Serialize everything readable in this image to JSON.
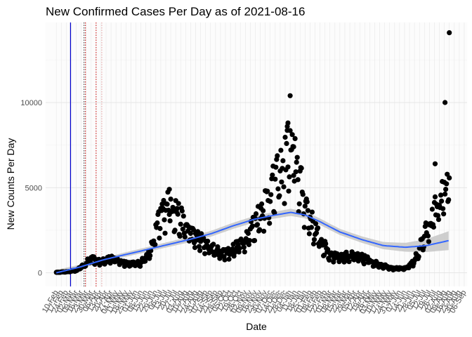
{
  "chart_data": {
    "type": "scatter",
    "title": "New Confirmed Cases Per Day as of 2021-08-16",
    "xlabel": "Date",
    "ylabel": "New Counts Per Day",
    "x_range": [
      "2020-01-26",
      "2021-09-10"
    ],
    "ylim": [
      -800,
      14700
    ],
    "y_ticks": [
      0,
      5000,
      10000
    ],
    "grid": true,
    "x_tick_labels": [
      "10-Feb",
      "17-Feb",
      "24-Feb",
      "02-Mar",
      "09-Mar",
      "16-Mar",
      "23-Mar",
      "30-Mar",
      "06-Apr",
      "13-Apr",
      "20-Apr",
      "27-Apr",
      "04-May",
      "11-May",
      "18-May",
      "25-May",
      "01-Jun",
      "08-Jun",
      "15-Jun",
      "22-Jun",
      "29-Jun",
      "06-Jul",
      "13-Jul",
      "20-Jul",
      "27-Jul",
      "03-Aug",
      "10-Aug",
      "17-Aug",
      "24-Aug",
      "31-Aug",
      "07-Sep",
      "14-Sep",
      "21-Sep",
      "28-Sep",
      "05-Oct",
      "12-Oct",
      "19-Oct",
      "26-Oct",
      "02-Nov",
      "09-Nov",
      "16-Nov",
      "23-Nov",
      "30-Nov",
      "07-Dec",
      "14-Dec",
      "21-Dec",
      "28-Dec",
      "04-Jan",
      "11-Jan",
      "18-Jan",
      "25-Jan",
      "01-Feb",
      "08-Feb",
      "15-Feb",
      "22-Feb",
      "01-Mar",
      "08-Mar",
      "15-Mar",
      "22-Mar",
      "29-Mar",
      "05-Apr",
      "12-Apr",
      "19-Apr",
      "26-Apr",
      "03-May",
      "10-May",
      "17-May",
      "24-May",
      "31-May",
      "07-Jun",
      "14-Jun",
      "21-Jun",
      "28-Jun",
      "05-Jul",
      "12-Jul",
      "19-Jul",
      "26-Jul",
      "02-Aug",
      "09-Aug",
      "16-Aug",
      "23-Aug",
      "30-Aug",
      "06-Sep"
    ],
    "series_points": {
      "name": "",
      "color": "#000000",
      "anchors": [
        [
          "2020-02-10",
          30
        ],
        [
          "2020-02-24",
          60
        ],
        [
          "2020-03-10",
          150
        ],
        [
          "2020-03-20",
          450
        ],
        [
          "2020-03-31",
          900
        ],
        [
          "2020-04-10",
          650
        ],
        [
          "2020-04-20",
          850
        ],
        [
          "2020-05-01",
          800
        ],
        [
          "2020-05-20",
          550
        ],
        [
          "2020-06-05",
          550
        ],
        [
          "2020-06-20",
          1100
        ],
        [
          "2020-06-28",
          2200
        ],
        [
          "2020-07-05",
          3300
        ],
        [
          "2020-07-15",
          4200
        ],
        [
          "2020-07-25",
          3900
        ],
        [
          "2020-08-05",
          3000
        ],
        [
          "2020-08-20",
          2200
        ],
        [
          "2020-09-05",
          1800
        ],
        [
          "2020-09-20",
          1300
        ],
        [
          "2020-10-05",
          1200
        ],
        [
          "2020-10-20",
          1500
        ],
        [
          "2020-11-05",
          2200
        ],
        [
          "2020-11-20",
          3300
        ],
        [
          "2020-12-05",
          4600
        ],
        [
          "2020-12-20",
          5800
        ],
        [
          "2021-01-03",
          7200
        ],
        [
          "2021-01-10",
          6800
        ],
        [
          "2021-01-20",
          5000
        ],
        [
          "2021-02-01",
          3200
        ],
        [
          "2021-02-15",
          1900
        ],
        [
          "2021-03-01",
          1100
        ],
        [
          "2021-03-15",
          1000
        ],
        [
          "2021-04-01",
          1000
        ],
        [
          "2021-04-20",
          850
        ],
        [
          "2021-05-05",
          550
        ],
        [
          "2021-05-20",
          380
        ],
        [
          "2021-06-01",
          250
        ],
        [
          "2021-06-15",
          250
        ],
        [
          "2021-06-28",
          700
        ],
        [
          "2021-07-10",
          2000
        ],
        [
          "2021-07-20",
          3000
        ],
        [
          "2021-07-30",
          4000
        ],
        [
          "2021-08-08",
          4600
        ],
        [
          "2021-08-16",
          5200
        ]
      ],
      "outliers": [
        [
          "2020-12-31",
          8600
        ],
        [
          "2021-01-01",
          8800
        ],
        [
          "2021-01-04",
          10400
        ],
        [
          "2021-01-09",
          7400
        ],
        [
          "2021-07-27",
          6400
        ],
        [
          "2021-08-10",
          10000
        ],
        [
          "2021-08-16",
          14100
        ],
        [
          "2020-07-18",
          4900
        ]
      ]
    },
    "series_smooth": {
      "name": "",
      "color": "#3366ff",
      "band_color": "#bfbfbf",
      "points": [
        [
          "2020-02-10",
          0
        ],
        [
          "2020-03-15",
          350
        ],
        [
          "2020-04-15",
          750
        ],
        [
          "2020-05-15",
          1050
        ],
        [
          "2020-06-15",
          1350
        ],
        [
          "2020-07-15",
          1650
        ],
        [
          "2020-08-15",
          1950
        ],
        [
          "2020-09-15",
          2300
        ],
        [
          "2020-10-15",
          2750
        ],
        [
          "2020-11-15",
          3150
        ],
        [
          "2020-12-15",
          3400
        ],
        [
          "2021-01-05",
          3550
        ],
        [
          "2021-01-25",
          3400
        ],
        [
          "2021-02-15",
          3000
        ],
        [
          "2021-03-15",
          2400
        ],
        [
          "2021-04-15",
          1950
        ],
        [
          "2021-05-15",
          1600
        ],
        [
          "2021-06-15",
          1500
        ],
        [
          "2021-07-15",
          1600
        ],
        [
          "2021-08-16",
          1900
        ]
      ],
      "band_half_width": [
        180,
        130,
        120,
        130,
        140,
        150,
        160,
        170,
        180,
        190,
        200,
        210,
        200,
        190,
        180,
        190,
        210,
        260,
        380,
        560
      ]
    },
    "reference_lines": [
      {
        "x": "2020-03-01",
        "color": "#0000cc",
        "style": "solid"
      },
      {
        "x": "2020-03-20",
        "color": "#333333",
        "style": "dotted"
      },
      {
        "x": "2020-03-22",
        "color": "#cc0000",
        "style": "dotted"
      },
      {
        "x": "2020-04-06",
        "color": "#cc0000",
        "style": "dotted"
      },
      {
        "x": "2020-04-14",
        "color": "#e8a0a0",
        "style": "dotted"
      }
    ]
  }
}
